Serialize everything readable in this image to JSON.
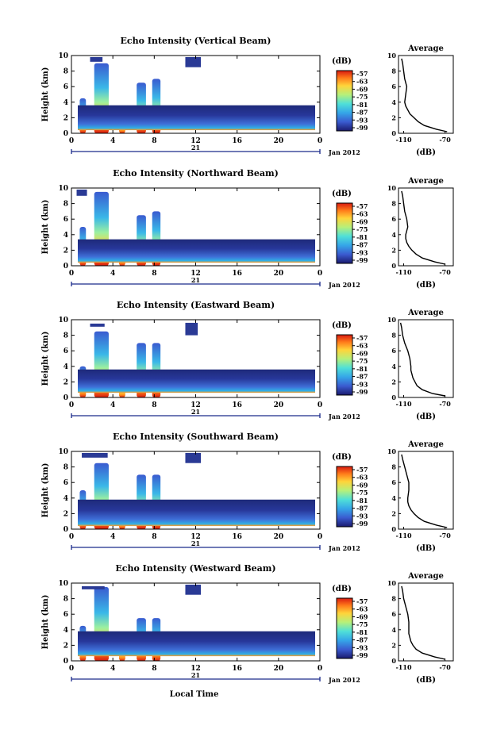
{
  "figure": {
    "xlabel_bottom": "Local Time",
    "date_label": "Jan 2012",
    "day_label": "21",
    "colorbar_unit": "(dB)",
    "profile_title": "Average",
    "profile_xlabel": "(dB)"
  },
  "chart_data": [
    {
      "type": "heatmap",
      "title": "Echo Intensity (Vertical Beam)",
      "ylabel": "Height (km)",
      "xlabel": "Local Time",
      "x_ticks": [
        "0",
        "4",
        "8",
        "12",
        "16",
        "20",
        "0"
      ],
      "y_ticks": [
        "0",
        "2",
        "4",
        "6",
        "8",
        "10"
      ],
      "xlim": [
        0,
        24
      ],
      "ylim": [
        0,
        10
      ],
      "colorbar_ticks": [
        "-57",
        "-63",
        "-69",
        "-75",
        "-81",
        "-87",
        "-93",
        "-99"
      ],
      "profile": {
        "title": "Average",
        "xlabel": "(dB)",
        "x_ticks": [
          "-110",
          "-70"
        ],
        "xlim": [
          -115,
          -62
        ],
        "y_ticks": [
          "0",
          "2",
          "4",
          "6",
          "8",
          "10"
        ],
        "height": [
          0.2,
          0.5,
          1.0,
          1.5,
          2.0,
          2.5,
          3.0,
          3.5,
          4.0,
          5.0,
          6.0,
          7.0,
          8.0,
          9.0,
          9.6
        ],
        "value": [
          -68,
          -78,
          -90,
          -96,
          -100,
          -104,
          -106,
          -108,
          -109,
          -108,
          -107,
          -109,
          -110,
          -111,
          -112
        ]
      },
      "features": [
        {
          "kind": "cell",
          "t0": 0.8,
          "t1": 1.4,
          "top": 4.5
        },
        {
          "kind": "cell",
          "t0": 2.2,
          "t1": 3.6,
          "top": 9.0
        },
        {
          "kind": "cell",
          "t0": 4.6,
          "t1": 5.2,
          "top": 2.5
        },
        {
          "kind": "cell",
          "t0": 6.3,
          "t1": 7.2,
          "top": 6.5
        },
        {
          "kind": "cell",
          "t0": 7.8,
          "t1": 8.6,
          "top": 7.0
        },
        {
          "kind": "layer",
          "t0": 0.0,
          "t1": 24.0,
          "bottom": 0.4,
          "top": 3.6
        },
        {
          "kind": "blob",
          "t0": 11.0,
          "t1": 12.5,
          "top": 9.8,
          "bottom": 8.5
        },
        {
          "kind": "blob",
          "t0": 1.8,
          "t1": 3.0,
          "top": 9.8,
          "bottom": 9.2
        }
      ]
    },
    {
      "type": "heatmap",
      "title": "Echo Intensity (Northward Beam)",
      "ylabel": "Height (km)",
      "xlabel": "Local Time",
      "x_ticks": [
        "0",
        "4",
        "8",
        "12",
        "16",
        "20",
        "0"
      ],
      "y_ticks": [
        "0",
        "2",
        "4",
        "6",
        "8",
        "10"
      ],
      "xlim": [
        0,
        24
      ],
      "ylim": [
        0,
        10
      ],
      "colorbar_ticks": [
        "-57",
        "-63",
        "-69",
        "-75",
        "-81",
        "-87",
        "-93",
        "-99"
      ],
      "profile": {
        "title": "Average",
        "xlabel": "(dB)",
        "x_ticks": [
          "-110",
          "-70"
        ],
        "xlim": [
          -115,
          -62
        ],
        "y_ticks": [
          "0",
          "2",
          "4",
          "6",
          "8",
          "10"
        ],
        "height": [
          0.2,
          0.5,
          1.0,
          1.5,
          2.0,
          2.5,
          3.0,
          3.5,
          4.0,
          5.0,
          6.0,
          7.0,
          8.0,
          9.0,
          9.6
        ],
        "value": [
          -70,
          -80,
          -92,
          -98,
          -102,
          -105,
          -107,
          -108,
          -108,
          -106,
          -107,
          -109,
          -110,
          -111,
          -112
        ]
      },
      "features": [
        {
          "kind": "cell",
          "t0": 0.8,
          "t1": 1.4,
          "top": 5.0
        },
        {
          "kind": "cell",
          "t0": 2.2,
          "t1": 3.6,
          "top": 9.5
        },
        {
          "kind": "cell",
          "t0": 4.6,
          "t1": 5.2,
          "top": 3.0
        },
        {
          "kind": "cell",
          "t0": 6.3,
          "t1": 7.2,
          "top": 6.5
        },
        {
          "kind": "cell",
          "t0": 7.8,
          "t1": 8.6,
          "top": 7.0
        },
        {
          "kind": "layer",
          "t0": 0.0,
          "t1": 24.0,
          "bottom": 0.4,
          "top": 3.4
        },
        {
          "kind": "blob",
          "t0": 0.5,
          "t1": 1.5,
          "top": 9.8,
          "bottom": 9.0
        }
      ]
    },
    {
      "type": "heatmap",
      "title": "Echo Intensity (Eastward Beam)",
      "ylabel": "Height (km)",
      "xlabel": "Local Time",
      "x_ticks": [
        "0",
        "4",
        "8",
        "12",
        "16",
        "20",
        "0"
      ],
      "y_ticks": [
        "0",
        "2",
        "4",
        "6",
        "8",
        "10"
      ],
      "xlim": [
        0,
        24
      ],
      "ylim": [
        0,
        10
      ],
      "colorbar_ticks": [
        "-57",
        "-63",
        "-69",
        "-75",
        "-81",
        "-87",
        "-93",
        "-99"
      ],
      "profile": {
        "title": "Average",
        "xlabel": "(dB)",
        "x_ticks": [
          "-110",
          "-70"
        ],
        "xlim": [
          -115,
          -62
        ],
        "y_ticks": [
          "0",
          "2",
          "4",
          "6",
          "8",
          "10"
        ],
        "height": [
          0.2,
          0.5,
          1.0,
          1.5,
          2.0,
          2.5,
          3.0,
          3.5,
          4.0,
          5.0,
          6.0,
          7.0,
          8.0,
          9.0,
          9.6
        ],
        "value": [
          -70,
          -82,
          -92,
          -97,
          -99,
          -101,
          -102,
          -103,
          -103,
          -104,
          -106,
          -109,
          -111,
          -112,
          -113
        ]
      },
      "features": [
        {
          "kind": "cell",
          "t0": 0.8,
          "t1": 1.4,
          "top": 4.0
        },
        {
          "kind": "cell",
          "t0": 2.2,
          "t1": 3.6,
          "top": 8.5
        },
        {
          "kind": "cell",
          "t0": 4.6,
          "t1": 5.2,
          "top": 2.5
        },
        {
          "kind": "cell",
          "t0": 6.3,
          "t1": 7.2,
          "top": 7.0
        },
        {
          "kind": "cell",
          "t0": 7.8,
          "t1": 8.6,
          "top": 7.0
        },
        {
          "kind": "layer",
          "t0": 0.0,
          "t1": 24.0,
          "bottom": 0.6,
          "top": 3.6
        },
        {
          "kind": "blob",
          "t0": 11.0,
          "t1": 12.2,
          "top": 9.6,
          "bottom": 8.0
        },
        {
          "kind": "blob",
          "t0": 1.8,
          "t1": 3.2,
          "top": 9.5,
          "bottom": 9.1
        }
      ]
    },
    {
      "type": "heatmap",
      "title": "Echo Intensity (Southward Beam)",
      "ylabel": "Height (km)",
      "xlabel": "Local Time",
      "x_ticks": [
        "0",
        "4",
        "8",
        "12",
        "16",
        "20",
        "0"
      ],
      "y_ticks": [
        "0",
        "2",
        "4",
        "6",
        "8",
        "10"
      ],
      "xlim": [
        0,
        24
      ],
      "ylim": [
        0,
        10
      ],
      "colorbar_ticks": [
        "-57",
        "-63",
        "-69",
        "-75",
        "-81",
        "-87",
        "-93",
        "-99"
      ],
      "profile": {
        "title": "Average",
        "xlabel": "(dB)",
        "x_ticks": [
          "-110",
          "-70"
        ],
        "xlim": [
          -115,
          -62
        ],
        "y_ticks": [
          "0",
          "2",
          "4",
          "6",
          "8",
          "10"
        ],
        "height": [
          0.2,
          0.5,
          1.0,
          1.5,
          2.0,
          2.5,
          3.0,
          3.5,
          4.0,
          5.0,
          6.0,
          7.0,
          8.0,
          9.0,
          9.6
        ],
        "value": [
          -68,
          -78,
          -90,
          -96,
          -100,
          -103,
          -105,
          -106,
          -106,
          -105,
          -105,
          -107,
          -109,
          -111,
          -112
        ]
      },
      "features": [
        {
          "kind": "cell",
          "t0": 0.8,
          "t1": 1.4,
          "top": 5.0
        },
        {
          "kind": "cell",
          "t0": 2.2,
          "t1": 3.6,
          "top": 8.5
        },
        {
          "kind": "cell",
          "t0": 4.6,
          "t1": 5.2,
          "top": 3.0
        },
        {
          "kind": "cell",
          "t0": 6.3,
          "t1": 7.2,
          "top": 7.0
        },
        {
          "kind": "cell",
          "t0": 7.8,
          "t1": 8.6,
          "top": 7.0
        },
        {
          "kind": "layer",
          "t0": 0.0,
          "t1": 24.0,
          "bottom": 0.4,
          "top": 3.8
        },
        {
          "kind": "blob",
          "t0": 11.0,
          "t1": 12.5,
          "top": 9.8,
          "bottom": 8.5
        },
        {
          "kind": "blob",
          "t0": 1.0,
          "t1": 3.5,
          "top": 9.8,
          "bottom": 9.2
        }
      ]
    },
    {
      "type": "heatmap",
      "title": "Echo Intensity (Westward Beam)",
      "ylabel": "Height (km)",
      "xlabel": "Local Time",
      "x_ticks": [
        "0",
        "4",
        "8",
        "12",
        "16",
        "20",
        "0"
      ],
      "y_ticks": [
        "0",
        "2",
        "4",
        "6",
        "8",
        "10"
      ],
      "xlim": [
        0,
        24
      ],
      "ylim": [
        0,
        10
      ],
      "colorbar_ticks": [
        "-57",
        "-63",
        "-69",
        "-75",
        "-81",
        "-87",
        "-93",
        "-99"
      ],
      "profile": {
        "title": "Average",
        "xlabel": "(dB)",
        "x_ticks": [
          "-110",
          "-70"
        ],
        "xlim": [
          -115,
          -62
        ],
        "y_ticks": [
          "0",
          "2",
          "4",
          "6",
          "8",
          "10"
        ],
        "height": [
          0.2,
          0.5,
          1.0,
          1.5,
          2.0,
          2.5,
          3.0,
          3.5,
          4.0,
          5.0,
          6.0,
          7.0,
          8.0,
          9.0,
          9.6
        ],
        "value": [
          -70,
          -80,
          -92,
          -98,
          -101,
          -103,
          -104,
          -105,
          -105,
          -105,
          -106,
          -108,
          -110,
          -111,
          -112
        ]
      },
      "features": [
        {
          "kind": "cell",
          "t0": 0.8,
          "t1": 1.4,
          "top": 4.5
        },
        {
          "kind": "cell",
          "t0": 2.2,
          "t1": 3.6,
          "top": 9.5
        },
        {
          "kind": "cell",
          "t0": 4.6,
          "t1": 5.2,
          "top": 3.0
        },
        {
          "kind": "cell",
          "t0": 6.3,
          "t1": 7.2,
          "top": 5.5
        },
        {
          "kind": "cell",
          "t0": 7.8,
          "t1": 8.6,
          "top": 5.5
        },
        {
          "kind": "layer",
          "t0": 0.0,
          "t1": 24.0,
          "bottom": 0.6,
          "top": 3.8
        },
        {
          "kind": "blob",
          "t0": 11.0,
          "t1": 12.5,
          "top": 9.8,
          "bottom": 8.5
        },
        {
          "kind": "blob",
          "t0": 1.0,
          "t1": 3.2,
          "top": 9.6,
          "bottom": 9.2
        }
      ]
    }
  ]
}
